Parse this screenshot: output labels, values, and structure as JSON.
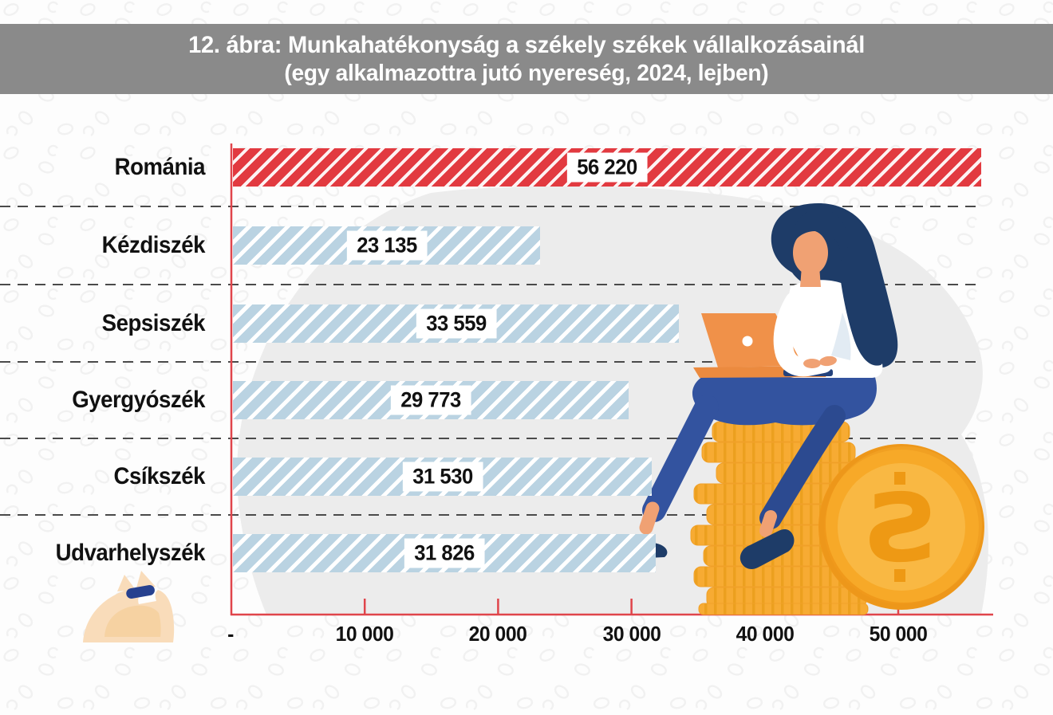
{
  "title": {
    "line1": "12. ábra: Munkahatékonyság a székely székek vállalkozásainál",
    "line2": "(egy alkalmazottra jutó nyereség, 2024, lejben)"
  },
  "chart_data": {
    "type": "bar",
    "orientation": "horizontal",
    "title": "12. ábra: Munkahatékonyság a székely székek vállalkozásainál (egy alkalmazottra jutó nyereség, 2024, lejben)",
    "categories": [
      "Románia",
      "Kézdiszék",
      "Sepsiszék",
      "Gyergyószék",
      "Csíkszék",
      "Udvarhelyszék"
    ],
    "values": [
      56220,
      23135,
      33559,
      29773,
      31530,
      31826
    ],
    "value_labels": [
      "56 220",
      "23 135",
      "33 559",
      "29 773",
      "31 530",
      "31 826"
    ],
    "xlabel": "",
    "ylabel": "",
    "xlim": [
      0,
      56220
    ],
    "x_ticks": [
      {
        "value": 0,
        "label": "-"
      },
      {
        "value": 10000,
        "label": "10 000"
      },
      {
        "value": 20000,
        "label": "20 000"
      },
      {
        "value": 30000,
        "label": "30 000"
      },
      {
        "value": 40000,
        "label": "40 000"
      },
      {
        "value": 50000,
        "label": "50 000"
      }
    ],
    "legend": false,
    "gridlines": "dashed horizontal separators between category rows",
    "highlight": {
      "category": "Románia"
    },
    "colors": {
      "country_bar": "#e23a40",
      "seat_bar": "#bad3e2",
      "stripe": "#ffffff",
      "axis_line": "#e0454b",
      "separator": "#4a4a4a",
      "value_text": "#111111",
      "category_text": "#111111",
      "title_band_bg": "#8a8a8a",
      "title_text": "#ffffff",
      "background": "#fdfdfd",
      "blob": "#ececec"
    }
  },
  "decor": {
    "background_pattern": "faint coin outlines",
    "illustrations": [
      "woman working on laptop sitting on coin stacks",
      "giant coin with currency symbol",
      "money bag"
    ]
  }
}
